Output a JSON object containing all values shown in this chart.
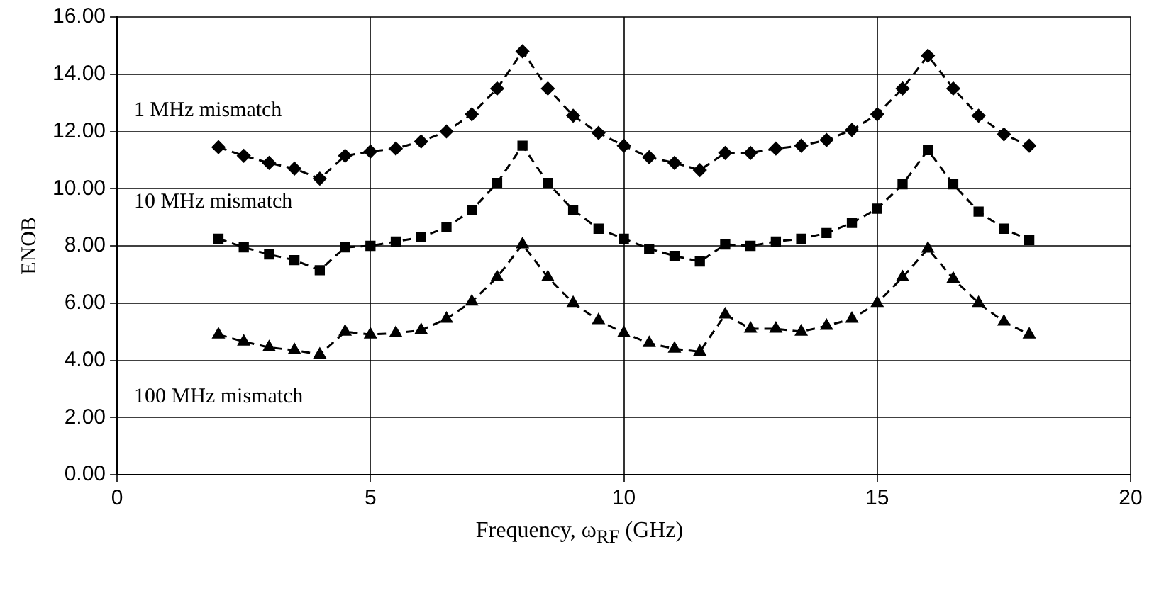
{
  "chart_data": {
    "type": "line",
    "xlabel": "Frequency, ω$_{RF}$ (GHz)",
    "ylabel": "ENOB",
    "x": [
      2,
      2.5,
      3,
      3.5,
      4,
      4.5,
      5,
      5.5,
      6,
      6.5,
      7,
      7.5,
      8,
      8.5,
      9,
      9.5,
      10,
      10.5,
      11,
      11.5,
      12,
      12.5,
      13,
      13.5,
      14,
      14.5,
      15,
      15.5,
      16,
      16.5,
      17,
      17.5,
      18
    ],
    "series": [
      {
        "name": "1 MHz mismatch",
        "color": "#000000",
        "marker": "diamond",
        "values": [
          11.45,
          11.15,
          10.9,
          10.7,
          10.35,
          11.15,
          11.3,
          11.4,
          11.65,
          12.0,
          12.6,
          13.5,
          14.8,
          13.5,
          12.55,
          11.95,
          11.5,
          11.1,
          10.9,
          10.65,
          11.25,
          11.25,
          11.4,
          11.5,
          11.7,
          12.05,
          12.6,
          13.5,
          14.65,
          13.5,
          12.55,
          11.9,
          11.5
        ]
      },
      {
        "name": "10 MHz mismatch",
        "color": "#000000",
        "marker": "square",
        "values": [
          8.25,
          7.95,
          7.7,
          7.5,
          7.15,
          7.95,
          8.0,
          8.15,
          8.3,
          8.65,
          9.25,
          10.2,
          11.5,
          10.2,
          9.25,
          8.6,
          8.25,
          7.9,
          7.65,
          7.45,
          8.05,
          8.0,
          8.15,
          8.25,
          8.45,
          8.8,
          9.3,
          10.15,
          11.35,
          10.15,
          9.2,
          8.6,
          8.2
        ]
      },
      {
        "name": "100 MHz mismatch",
        "color": "#000000",
        "marker": "triangle",
        "values": [
          4.9,
          4.65,
          4.45,
          4.35,
          4.2,
          5.0,
          4.9,
          4.95,
          5.05,
          5.45,
          6.05,
          6.9,
          8.05,
          6.9,
          6.0,
          5.4,
          4.95,
          4.6,
          4.4,
          4.3,
          5.6,
          5.1,
          5.1,
          5.0,
          5.2,
          5.45,
          6.0,
          6.9,
          7.9,
          6.85,
          6.0,
          5.35,
          4.9
        ]
      }
    ],
    "xlim": [
      0,
      20
    ],
    "xticks": [
      0,
      5,
      10,
      15,
      20
    ],
    "ylim": [
      0,
      16
    ],
    "yticks": [
      {
        "value": 0,
        "label": "0.00"
      },
      {
        "value": 2,
        "label": "2.00"
      },
      {
        "value": 4,
        "label": "4.00"
      },
      {
        "value": 6,
        "label": "6.00"
      },
      {
        "value": 8,
        "label": "8.00"
      },
      {
        "value": 10,
        "label": "10.00"
      },
      {
        "value": 12,
        "label": "12.00"
      },
      {
        "value": 14,
        "label": "14.00"
      },
      {
        "value": 16,
        "label": "16.00"
      }
    ],
    "grid": true,
    "legend": false,
    "line_style": "dashed"
  }
}
